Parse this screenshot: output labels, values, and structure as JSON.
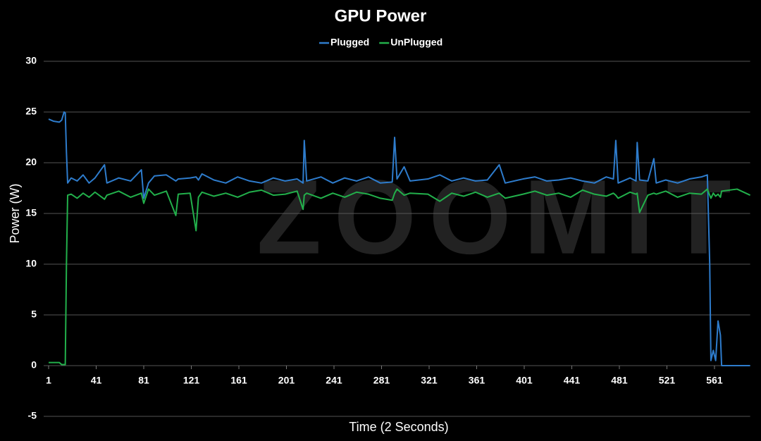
{
  "chart_data": {
    "type": "line",
    "title": "GPU Power",
    "xlabel": "Time (2 Seconds)",
    "ylabel": "Power (W)",
    "watermark": "ZOOMIT",
    "legend": "top",
    "grid": true,
    "xlim": [
      1,
      591
    ],
    "xticks": [
      1,
      41,
      81,
      121,
      161,
      201,
      241,
      281,
      321,
      361,
      401,
      441,
      481,
      521,
      561
    ],
    "ylim": [
      -5,
      30
    ],
    "yticks": [
      -5,
      0,
      5,
      10,
      15,
      20,
      25,
      30
    ],
    "x": [
      1,
      5,
      10,
      12,
      14,
      15,
      16,
      17,
      20,
      25,
      30,
      35,
      40,
      48,
      50,
      60,
      70,
      79,
      81,
      85,
      90,
      100,
      108,
      110,
      120,
      125,
      127,
      130,
      140,
      150,
      160,
      170,
      180,
      190,
      200,
      210,
      215,
      216,
      218,
      230,
      240,
      250,
      260,
      270,
      280,
      290,
      292,
      294,
      300,
      305,
      320,
      330,
      340,
      350,
      360,
      370,
      380,
      385,
      400,
      410,
      420,
      430,
      440,
      450,
      460,
      470,
      476,
      478,
      480,
      490,
      495,
      496,
      498,
      505,
      510,
      512,
      520,
      530,
      540,
      550,
      555,
      557,
      558,
      560,
      562,
      564,
      566,
      567,
      580,
      591
    ],
    "series": [
      {
        "name": "Plugged",
        "color": "#2e7ccc",
        "values": [
          24.3,
          24.1,
          24.0,
          24.2,
          25.0,
          24.9,
          21.0,
          18.0,
          18.5,
          18.2,
          18.8,
          18.0,
          18.5,
          19.8,
          18.0,
          18.5,
          18.2,
          19.3,
          16.5,
          18.0,
          18.7,
          18.8,
          18.2,
          18.4,
          18.5,
          18.6,
          18.3,
          18.9,
          18.3,
          18.0,
          18.6,
          18.2,
          18.0,
          18.5,
          18.2,
          18.4,
          18.0,
          22.2,
          18.2,
          18.6,
          18.0,
          18.5,
          18.2,
          18.6,
          18.0,
          18.1,
          22.5,
          18.4,
          19.6,
          18.2,
          18.4,
          18.8,
          18.2,
          18.5,
          18.2,
          18.3,
          19.8,
          18.0,
          18.4,
          18.6,
          18.2,
          18.3,
          18.5,
          18.2,
          18.0,
          18.6,
          18.4,
          22.2,
          18.0,
          18.5,
          18.2,
          22.0,
          18.3,
          18.2,
          20.4,
          18.0,
          18.3,
          18.0,
          18.4,
          18.6,
          18.8,
          10.0,
          0.5,
          1.5,
          0.5,
          4.4,
          3.0,
          0.0,
          0.0,
          0.0
        ]
      },
      {
        "name": "UnPlugged",
        "color": "#22b04b",
        "values": [
          0.3,
          0.3,
          0.3,
          0.1,
          0.1,
          0.1,
          10.0,
          16.8,
          16.9,
          16.5,
          17.0,
          16.6,
          17.1,
          16.4,
          16.8,
          17.2,
          16.6,
          17.0,
          16.0,
          17.4,
          16.8,
          17.2,
          14.8,
          16.9,
          17.0,
          13.3,
          16.6,
          17.1,
          16.7,
          17.0,
          16.6,
          17.1,
          17.3,
          16.8,
          16.9,
          17.2,
          15.4,
          16.8,
          17.0,
          16.5,
          17.0,
          16.6,
          17.1,
          16.9,
          16.5,
          16.3,
          17.0,
          17.4,
          16.8,
          17.0,
          16.9,
          16.2,
          17.0,
          16.7,
          17.1,
          16.6,
          17.0,
          16.5,
          16.9,
          17.2,
          16.8,
          17.0,
          16.6,
          17.3,
          16.9,
          16.7,
          17.0,
          16.8,
          16.5,
          17.1,
          16.9,
          17.0,
          15.1,
          16.8,
          17.0,
          16.9,
          17.2,
          16.6,
          17.0,
          16.9,
          17.4,
          16.8,
          16.5,
          17.0,
          16.7,
          16.9,
          16.6,
          17.2,
          17.4,
          16.8
        ]
      }
    ]
  }
}
